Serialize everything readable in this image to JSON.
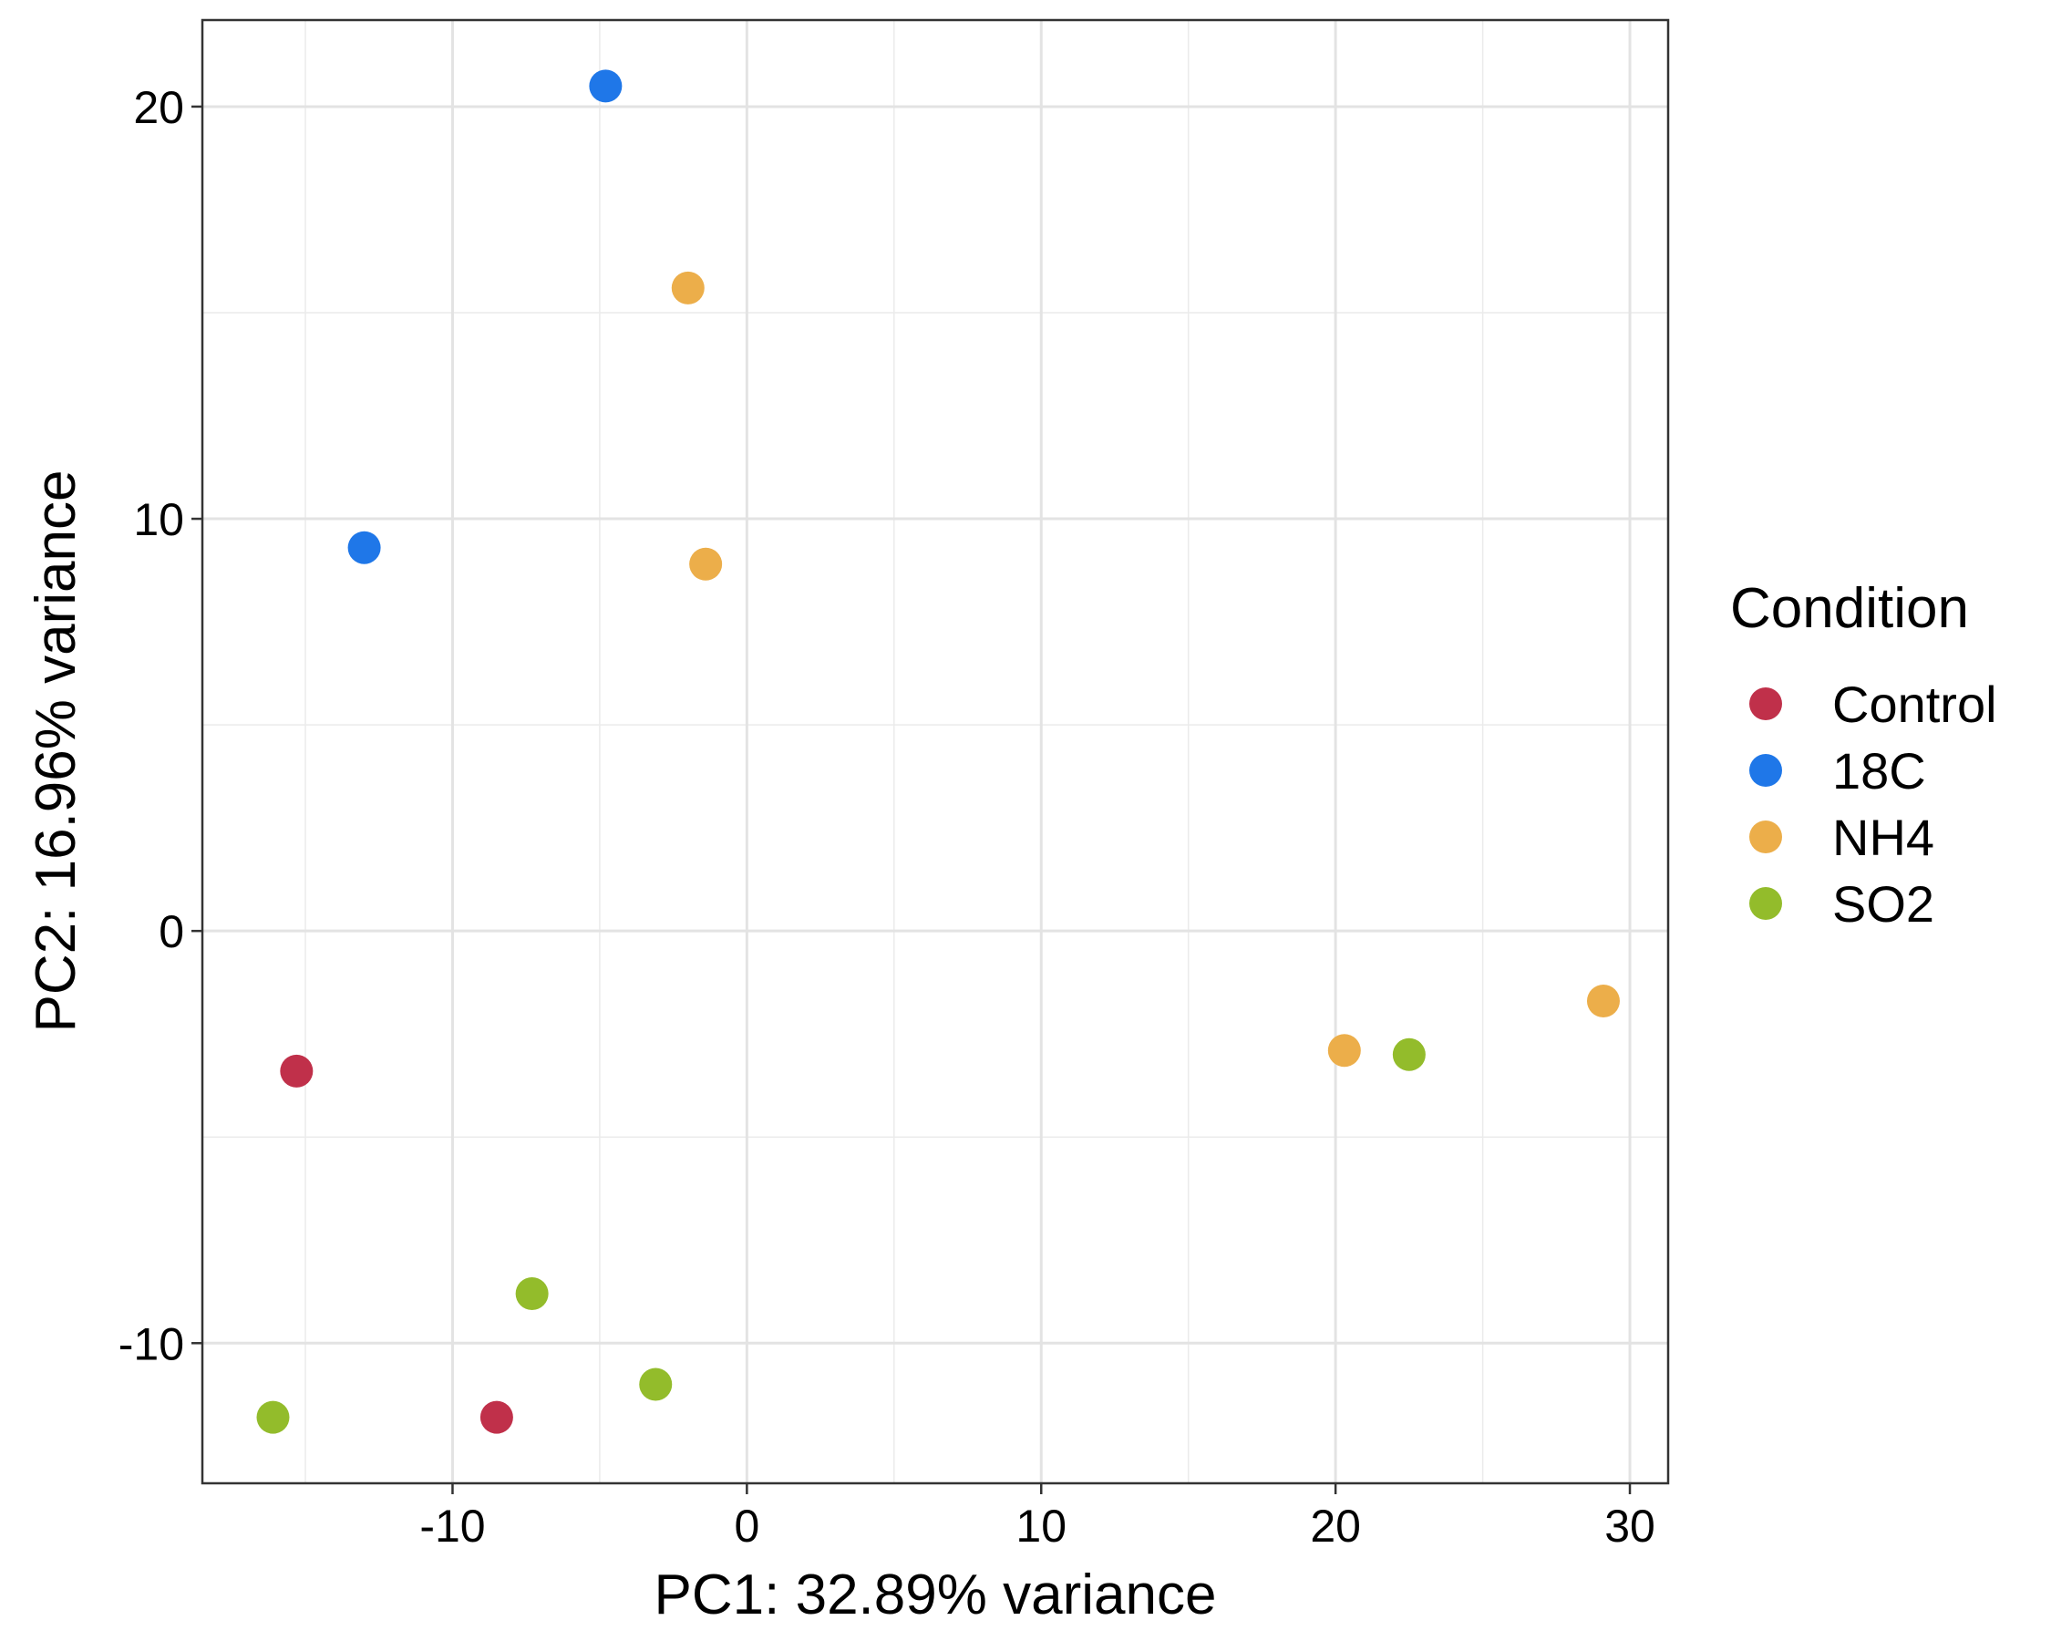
{
  "chart_data": {
    "type": "scatter",
    "xlabel": "PC1: 32.89% variance",
    "ylabel": "PC2: 16.96% variance",
    "xlim": [
      -18.5,
      31.3
    ],
    "ylim": [
      -13.4,
      22.1
    ],
    "x_ticks": [
      -10,
      0,
      10,
      20,
      30
    ],
    "x_tick_labels": [
      "-10",
      "0",
      "10",
      "20",
      "30"
    ],
    "x_minor_ticks": [
      -15,
      -5,
      5,
      15,
      25
    ],
    "y_ticks": [
      -10,
      0,
      10,
      20
    ],
    "y_tick_labels": [
      "-10",
      "0",
      "10",
      "20"
    ],
    "y_minor_ticks": [
      -5,
      5,
      15
    ],
    "grid": true,
    "legend": {
      "title": "Condition",
      "position": "right"
    },
    "series": [
      {
        "name": "Control",
        "color": "#C0304A",
        "points": [
          [
            -15.3,
            -3.4
          ],
          [
            -8.5,
            -11.8
          ]
        ]
      },
      {
        "name": "18C",
        "color": "#1F77E8",
        "points": [
          [
            -13.0,
            9.3
          ],
          [
            -4.8,
            20.5
          ]
        ]
      },
      {
        "name": "NH4",
        "color": "#ECAE4A",
        "points": [
          [
            -2.0,
            15.6
          ],
          [
            -1.4,
            8.9
          ],
          [
            20.3,
            -2.9
          ],
          [
            29.1,
            -1.7
          ]
        ]
      },
      {
        "name": "SO2",
        "color": "#93BC2B",
        "points": [
          [
            -7.3,
            -8.8
          ],
          [
            -16.1,
            -11.8
          ],
          [
            -3.1,
            -11.0
          ],
          [
            22.5,
            -3.0
          ]
        ]
      }
    ]
  }
}
